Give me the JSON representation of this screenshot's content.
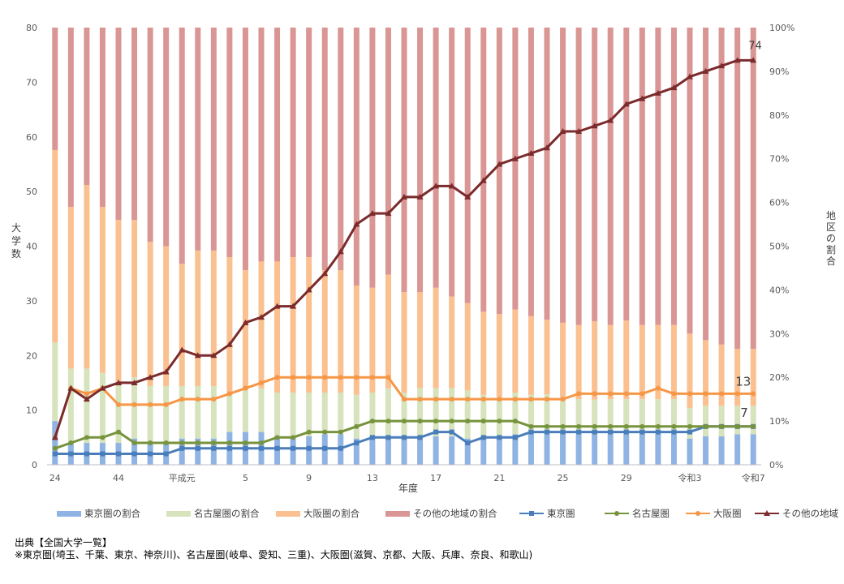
{
  "chart_data": {
    "type": "bar+line",
    "xlabel": "年度",
    "ylabel": "大学数",
    "y2label": "地区の割合",
    "ylim": [
      0,
      80
    ],
    "y2lim": [
      0,
      100
    ],
    "yticks": [
      "0",
      "10",
      "20",
      "30",
      "40",
      "50",
      "60",
      "70",
      "80"
    ],
    "y2ticks": [
      "0%",
      "10%",
      "20%",
      "30%",
      "40%",
      "50%",
      "60%",
      "70%",
      "80%",
      "90%",
      "100%"
    ],
    "x_tick_labels": [
      "24",
      "44",
      "平成元",
      "5",
      "9",
      "13",
      "17",
      "21",
      "25",
      "29",
      "令和3",
      "令和7"
    ],
    "x_tick_positions": [
      0,
      4,
      8,
      12,
      16,
      20,
      24,
      28,
      32,
      36,
      40,
      44
    ],
    "n_categories": 45,
    "grid": false,
    "legend_position": "bottom",
    "share_series": [
      {
        "name": "東京圏の割合",
        "color": "#8fb4e3",
        "values": [
          10,
          5,
          5,
          5,
          5,
          6,
          5,
          5,
          6,
          6,
          6,
          7.5,
          7.5,
          7.5,
          6.5,
          6.5,
          6.5,
          7,
          7,
          6,
          6.5,
          6.5,
          6.5,
          6.5,
          6.5,
          6.5,
          6,
          6.5,
          6,
          7,
          7,
          7,
          7,
          7,
          7,
          7,
          7,
          7,
          7,
          7,
          6,
          6.5,
          6.5,
          7,
          7
        ]
      },
      {
        "name": "名古屋圏の割合",
        "color": "#d6e3bc",
        "values": [
          18,
          17,
          17,
          16,
          14,
          14,
          13,
          13,
          12,
          12,
          12,
          9,
          10,
          10,
          10,
          10,
          10,
          9.5,
          9.5,
          10,
          10,
          11,
          10,
          11,
          11,
          11,
          11,
          9.5,
          9.5,
          9.5,
          9,
          9,
          8.5,
          8,
          8,
          8,
          8,
          8,
          8,
          8,
          7,
          7,
          7,
          6.5,
          6.5
        ]
      },
      {
        "name": "大阪圏の割合",
        "color": "#fac090",
        "values": [
          44,
          37,
          42,
          38,
          37,
          36,
          33,
          32,
          28,
          31,
          31,
          31,
          27,
          29,
          30,
          31,
          31,
          28,
          28,
          25,
          24,
          26,
          23,
          22,
          23,
          21,
          20,
          19,
          19,
          19,
          18,
          17,
          17,
          17,
          18,
          17,
          18,
          17,
          17,
          17,
          17,
          15,
          14,
          13,
          13
        ]
      },
      {
        "name": "その他の地域の割合",
        "color": "#d99694",
        "values": [
          28,
          41,
          36,
          41,
          44,
          44,
          49,
          50,
          54,
          51,
          51,
          52.5,
          55.5,
          53.5,
          53.5,
          52.5,
          52.5,
          55.5,
          55.5,
          59,
          59.5,
          56.5,
          60.5,
          60.5,
          59.5,
          61.5,
          63,
          65,
          65.5,
          64.5,
          66,
          66.5,
          67.5,
          68,
          67.5,
          68,
          67,
          68,
          68,
          68,
          70,
          71.5,
          72.5,
          73.5,
          73.5
        ]
      }
    ],
    "count_series": [
      {
        "name": "東京圏",
        "color": "#4a7ebb",
        "marker": "square",
        "values": [
          2,
          2,
          2,
          2,
          2,
          2,
          2,
          2,
          3,
          3,
          3,
          3,
          3,
          3,
          3,
          3,
          3,
          3,
          3,
          4,
          5,
          5,
          5,
          5,
          6,
          6,
          4,
          5,
          5,
          5,
          6,
          6,
          6,
          6,
          6,
          6,
          6,
          6,
          6,
          6,
          6,
          7,
          7,
          7,
          7
        ]
      },
      {
        "name": "名古屋圏",
        "color": "#77933c",
        "marker": "circle",
        "values": [
          3,
          4,
          5,
          5,
          6,
          4,
          4,
          4,
          4,
          4,
          4,
          4,
          4,
          4,
          5,
          5,
          6,
          6,
          6,
          7,
          8,
          8,
          8,
          8,
          8,
          8,
          8,
          8,
          8,
          8,
          7,
          7,
          7,
          7,
          7,
          7,
          7,
          7,
          7,
          7,
          7,
          7,
          7,
          7,
          7
        ]
      },
      {
        "name": "大阪圏",
        "color": "#f79646",
        "marker": "circle",
        "values": [
          5,
          14,
          13,
          14,
          11,
          11,
          11,
          11,
          12,
          12,
          12,
          13,
          14,
          15,
          16,
          16,
          16,
          16,
          16,
          16,
          16,
          16,
          12,
          12,
          12,
          12,
          12,
          12,
          12,
          12,
          12,
          12,
          12,
          13,
          13,
          13,
          13,
          13,
          14,
          13,
          13,
          13,
          13,
          13,
          13
        ]
      },
      {
        "name": "その他の地域",
        "color": "#7b2b2b",
        "marker": "triangle",
        "values": [
          5,
          14,
          12,
          14,
          15,
          15,
          16,
          17,
          21,
          20,
          20,
          22,
          26,
          27,
          29,
          29,
          32,
          35,
          39,
          44,
          46,
          46,
          49,
          49,
          51,
          51,
          49,
          52,
          55,
          56,
          57,
          58,
          61,
          61,
          62,
          63,
          66,
          67,
          68,
          69,
          71,
          72,
          73,
          74,
          74
        ]
      }
    ],
    "end_labels": {
      "その他の地域": "74",
      "大阪圏": "13",
      "名古屋圏": "7"
    }
  },
  "notes": {
    "source": "出典【全国大学一覧】",
    "footnote": "※東京圏(埼玉、千葉、東京、神奈川)、名古屋圏(岐阜、愛知、三重)、大阪圏(滋賀、京都、大阪、兵庫、奈良、和歌山)"
  }
}
